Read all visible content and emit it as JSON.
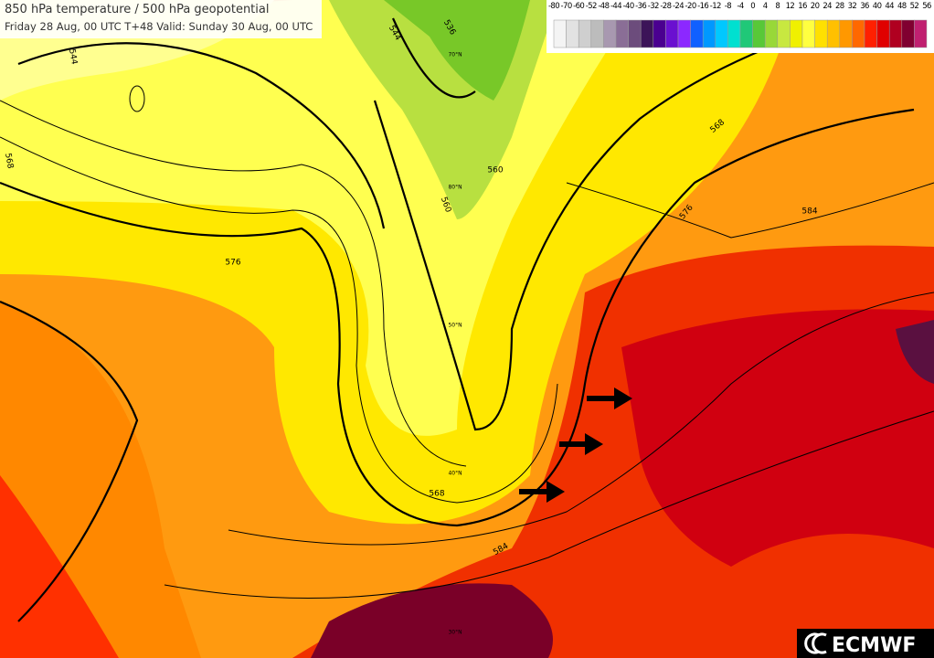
{
  "header": {
    "title": "850 hPa temperature / 500 hPa geopotential",
    "subtitle": "Friday 28 Aug, 00 UTC T+48 Valid: Sunday 30 Aug, 00 UTC"
  },
  "legend": {
    "labels": [
      -80,
      -70,
      -60,
      -52,
      -48,
      -44,
      -40,
      -36,
      -32,
      -28,
      -24,
      -20,
      -16,
      -12,
      -8,
      -4,
      0,
      4,
      8,
      12,
      16,
      20,
      24,
      28,
      32,
      36,
      40,
      44,
      48,
      52,
      56
    ],
    "colors": [
      "#f4f4f4",
      "#e2e2e2",
      "#cfcfcf",
      "#bcbcbc",
      "#a898b0",
      "#8a6e96",
      "#6c4c7c",
      "#3c1458",
      "#4a0090",
      "#6a10d0",
      "#8c28ff",
      "#1060ff",
      "#0098ff",
      "#00c8ff",
      "#00e0d0",
      "#20c878",
      "#58c838",
      "#98d838",
      "#c8e840",
      "#f0f000",
      "#ffff40",
      "#ffe000",
      "#ffc000",
      "#ff9800",
      "#ff6800",
      "#ff2000",
      "#e00000",
      "#b00020",
      "#800030",
      "#c02070"
    ]
  },
  "contour_labels": [
    "544",
    "536",
    "560",
    "568",
    "576",
    "584",
    "568",
    "576",
    "584",
    "544",
    "560",
    "568"
  ],
  "latitude_labels": [
    "80°N",
    "70°N",
    "50°N",
    "40°N",
    "30°N"
  ],
  "logo": "ECMWF"
}
